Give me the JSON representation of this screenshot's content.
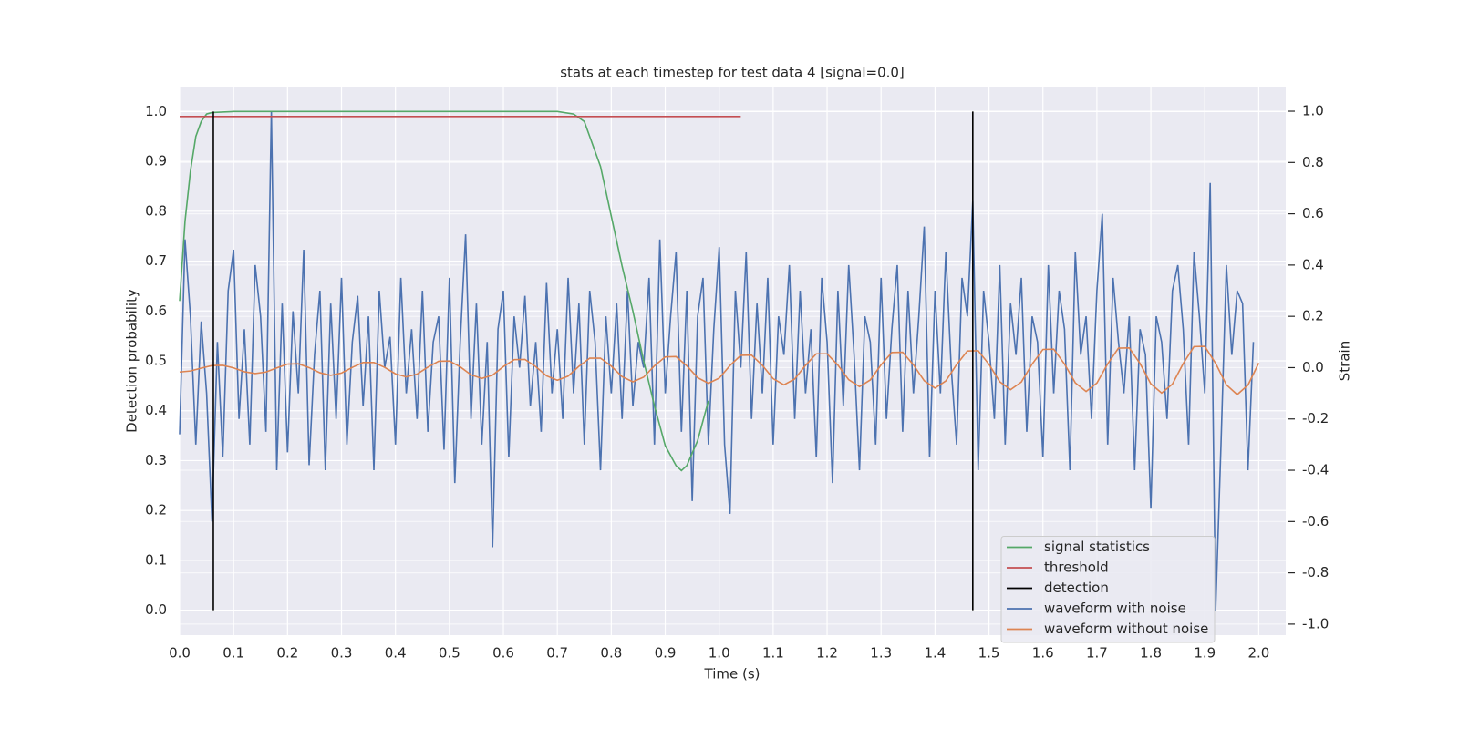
{
  "chart_data": {
    "type": "line",
    "title": "stats at each timestep for test data 4 [signal=0.0]",
    "xlabel": "Time (s)",
    "ylabel": "Detection probability",
    "y2label": "Strain",
    "xlim": [
      0,
      2.05
    ],
    "ylim": [
      -0.05,
      1.05
    ],
    "y2lim": [
      -1.043,
      1.096
    ],
    "xticks": [
      {
        "value": 0,
        "label": "0.0"
      },
      0.1,
      0.2,
      0.3,
      0.4,
      0.5,
      0.6,
      0.7,
      0.8,
      0.9,
      {
        "value": 1,
        "label": "1.0"
      },
      1.1,
      1.2,
      1.3,
      1.4,
      1.5,
      1.6,
      1.7,
      1.8,
      1.9,
      {
        "value": 2,
        "label": "2.0"
      }
    ],
    "yticks": [
      {
        "value": 0,
        "label": "0.0"
      },
      0.1,
      0.2,
      0.3,
      0.4,
      0.5,
      0.6,
      0.7,
      0.8,
      0.9,
      {
        "value": 1,
        "label": "1.0"
      }
    ],
    "y2ticks": [
      {
        "value": -1,
        "label": "-1.0"
      },
      -0.8,
      -0.6,
      -0.4,
      -0.2,
      {
        "value": 0,
        "label": "0.0"
      },
      0.2,
      0.4,
      0.6,
      0.8,
      {
        "value": 1,
        "label": "1.0"
      }
    ],
    "grid": true,
    "legend": "lower right",
    "series": [
      {
        "name": "signal statistics",
        "color": "#55a868",
        "x": [
          0,
          0.01,
          0.02,
          0.03,
          0.04,
          0.05,
          0.06,
          0.1,
          0.2,
          0.3,
          0.4,
          0.5,
          0.6,
          0.7,
          0.73,
          0.75,
          0.76,
          0.78,
          0.8,
          0.82,
          0.84,
          0.86,
          0.88,
          0.9,
          0.92,
          0.93,
          0.94,
          0.96,
          0.98
        ],
        "values": [
          0.62,
          0.78,
          0.88,
          0.95,
          0.98,
          0.995,
          0.998,
          1,
          1,
          1,
          1,
          1,
          1,
          1,
          0.995,
          0.98,
          0.95,
          0.89,
          0.79,
          0.69,
          0.6,
          0.5,
          0.41,
          0.33,
          0.29,
          0.28,
          0.29,
          0.34,
          0.42
        ]
      },
      {
        "name": "threshold",
        "color": "#c44e52",
        "x": [
          0,
          1.04
        ],
        "values": [
          0.99,
          0.99
        ]
      },
      {
        "name": "detection",
        "color": "#000000",
        "x": [
          0.0625,
          0.0625,
          null,
          1.47,
          1.47
        ],
        "values": [
          0,
          1,
          null,
          0,
          1
        ]
      },
      {
        "name": "waveform with noise",
        "color": "#4c72b0",
        "axis": "y2",
        "x": [
          0,
          0.01,
          0.02,
          0.03,
          0.04,
          0.05,
          0.06,
          0.07,
          0.08,
          0.09,
          0.1,
          0.11,
          0.12,
          0.13,
          0.14,
          0.15,
          0.16,
          0.17,
          0.18,
          0.19,
          0.2,
          0.21,
          0.22,
          0.23,
          0.24,
          0.25,
          0.26,
          0.27,
          0.28,
          0.29,
          0.3,
          0.31,
          0.32,
          0.33,
          0.34,
          0.35,
          0.36,
          0.37,
          0.38,
          0.39,
          0.4,
          0.41,
          0.42,
          0.43,
          0.44,
          0.45,
          0.46,
          0.47,
          0.48,
          0.49,
          0.5,
          0.51,
          0.52,
          0.53,
          0.54,
          0.55,
          0.56,
          0.57,
          0.58,
          0.59,
          0.6,
          0.61,
          0.62,
          0.63,
          0.64,
          0.65,
          0.66,
          0.67,
          0.68,
          0.69,
          0.7,
          0.71,
          0.72,
          0.73,
          0.74,
          0.75,
          0.76,
          0.77,
          0.78,
          0.79,
          0.8,
          0.81,
          0.82,
          0.83,
          0.84,
          0.85,
          0.86,
          0.87,
          0.88,
          0.89,
          0.9,
          0.91,
          0.92,
          0.93,
          0.94,
          0.95,
          0.96,
          0.97,
          0.98,
          0.99,
          1,
          1.01,
          1.02,
          1.03,
          1.04,
          1.05,
          1.06,
          1.07,
          1.08,
          1.09,
          1.1,
          1.11,
          1.12,
          1.13,
          1.14,
          1.15,
          1.16,
          1.17,
          1.18,
          1.19,
          1.2,
          1.21,
          1.22,
          1.23,
          1.24,
          1.25,
          1.26,
          1.27,
          1.28,
          1.29,
          1.3,
          1.31,
          1.32,
          1.33,
          1.34,
          1.35,
          1.36,
          1.37,
          1.38,
          1.39,
          1.4,
          1.41,
          1.42,
          1.43,
          1.44,
          1.45,
          1.46,
          1.47,
          1.48,
          1.49,
          1.5,
          1.51,
          1.52,
          1.53,
          1.54,
          1.55,
          1.56,
          1.57,
          1.58,
          1.59,
          1.6,
          1.61,
          1.62,
          1.63,
          1.64,
          1.65,
          1.66,
          1.67,
          1.68,
          1.69,
          1.7,
          1.71,
          1.72,
          1.73,
          1.74,
          1.75,
          1.76,
          1.77,
          1.78,
          1.79,
          1.8,
          1.81,
          1.82,
          1.83,
          1.84,
          1.85,
          1.86,
          1.87,
          1.88,
          1.89,
          1.9,
          1.91,
          1.92,
          1.93,
          1.94,
          1.95,
          1.96,
          1.97,
          1.98,
          1.99
        ],
        "values": [
          -0.26,
          0.5,
          0.2,
          -0.3,
          0.18,
          -0.1,
          -0.6,
          0.1,
          -0.35,
          0.3,
          0.46,
          -0.2,
          0.15,
          -0.3,
          0.4,
          0.2,
          -0.25,
          1.0,
          -0.4,
          0.25,
          -0.33,
          0.22,
          -0.1,
          0.46,
          -0.38,
          0.05,
          0.3,
          -0.4,
          0.25,
          -0.2,
          0.35,
          -0.3,
          0.1,
          0.28,
          -0.15,
          0.2,
          -0.4,
          0.3,
          0.0,
          0.12,
          -0.3,
          0.35,
          -0.1,
          0.15,
          -0.2,
          0.3,
          -0.25,
          0.1,
          0.2,
          -0.32,
          0.35,
          -0.45,
          0.1,
          0.52,
          -0.2,
          0.25,
          -0.3,
          0.1,
          -0.7,
          0.15,
          0.3,
          -0.35,
          0.2,
          0.0,
          0.28,
          -0.15,
          0.1,
          -0.25,
          0.33,
          -0.1,
          0.15,
          -0.2,
          0.35,
          -0.1,
          0.25,
          -0.3,
          0.3,
          0.1,
          -0.4,
          0.2,
          -0.1,
          0.25,
          -0.2,
          0.3,
          -0.15,
          0.1,
          0.0,
          0.35,
          -0.3,
          0.5,
          -0.1,
          0.2,
          0.45,
          -0.25,
          0.3,
          -0.52,
          0.2,
          0.35,
          -0.3,
          0.15,
          0.47,
          -0.3,
          -0.57,
          0.3,
          0.0,
          0.45,
          -0.2,
          0.25,
          -0.1,
          0.35,
          -0.3,
          0.2,
          0.05,
          0.4,
          -0.2,
          0.3,
          -0.1,
          0.15,
          -0.35,
          0.35,
          0.1,
          -0.45,
          0.3,
          -0.15,
          0.4,
          0.05,
          -0.4,
          0.2,
          0.1,
          -0.3,
          0.35,
          -0.2,
          0.15,
          0.4,
          -0.25,
          0.3,
          -0.1,
          0.2,
          0.55,
          -0.35,
          0.3,
          -0.1,
          0.45,
          0.0,
          -0.3,
          0.35,
          0.2,
          0.65,
          -0.4,
          0.3,
          0.1,
          -0.2,
          0.4,
          -0.3,
          0.25,
          0.05,
          0.35,
          -0.25,
          0.2,
          0.1,
          -0.35,
          0.4,
          -0.1,
          0.3,
          0.15,
          -0.4,
          0.45,
          0.05,
          0.2,
          -0.2,
          0.3,
          0.6,
          -0.3,
          0.35,
          0.1,
          -0.1,
          0.2,
          -0.4,
          0.15,
          0.05,
          -0.55,
          0.2,
          0.1,
          -0.2,
          0.3,
          0.4,
          0.15,
          -0.3,
          0.45,
          0.2,
          -0.1,
          0.72,
          -0.95,
          -0.3,
          0.4,
          0.05,
          0.3,
          0.25,
          -0.4,
          0.1
        ]
      },
      {
        "name": "waveform without noise",
        "color": "#dd8452",
        "axis": "y2",
        "x": [
          0,
          0.02,
          0.04,
          0.06,
          0.08,
          0.1,
          0.12,
          0.14,
          0.16,
          0.18,
          0.2,
          0.22,
          0.24,
          0.26,
          0.28,
          0.3,
          0.32,
          0.34,
          0.36,
          0.38,
          0.4,
          0.42,
          0.44,
          0.46,
          0.48,
          0.5,
          0.52,
          0.54,
          0.56,
          0.58,
          0.6,
          0.62,
          0.64,
          0.66,
          0.68,
          0.7,
          0.72,
          0.74,
          0.76,
          0.78,
          0.8,
          0.82,
          0.84,
          0.86,
          0.88,
          0.9,
          0.92,
          0.94,
          0.96,
          0.98,
          1,
          1.02,
          1.04,
          1.06,
          1.08,
          1.1,
          1.12,
          1.14,
          1.16,
          1.18,
          1.2,
          1.22,
          1.24,
          1.26,
          1.28,
          1.3,
          1.32,
          1.34,
          1.36,
          1.38,
          1.4,
          1.42,
          1.44,
          1.46,
          1.48,
          1.5,
          1.52,
          1.54,
          1.56,
          1.58,
          1.6,
          1.62,
          1.64,
          1.66,
          1.68,
          1.7,
          1.72,
          1.74,
          1.76,
          1.78,
          1.8,
          1.82,
          1.84,
          1.86,
          1.88,
          1.9,
          1.92,
          1.94,
          1.96,
          1.98,
          2
        ],
        "values": [
          -0.017,
          -0.013,
          -0.002,
          0.008,
          0.009,
          -0.001,
          -0.016,
          -0.023,
          -0.017,
          -0.001,
          0.014,
          0.015,
          0,
          -0.02,
          -0.03,
          -0.021,
          0.001,
          0.02,
          0.02,
          0.001,
          -0.024,
          -0.036,
          -0.025,
          0.002,
          0.025,
          0.026,
          0.003,
          -0.028,
          -0.042,
          -0.029,
          0.004,
          0.031,
          0.032,
          0.004,
          -0.032,
          -0.049,
          -0.033,
          0.005,
          0.037,
          0.037,
          0.006,
          -0.035,
          -0.055,
          -0.037,
          0.007,
          0.042,
          0.043,
          0.007,
          -0.039,
          -0.061,
          -0.041,
          0.008,
          0.048,
          0.049,
          0.009,
          -0.043,
          -0.067,
          -0.044,
          0.009,
          0.054,
          0.054,
          0.01,
          -0.047,
          -0.074,
          -0.048,
          0.011,
          0.059,
          0.06,
          0.011,
          -0.051,
          -0.08,
          -0.052,
          0.012,
          0.065,
          0.066,
          0.013,
          -0.055,
          -0.086,
          -0.056,
          0.014,
          0.071,
          0.072,
          0.014,
          -0.059,
          -0.093,
          -0.06,
          0.015,
          0.076,
          0.077,
          0.016,
          -0.063,
          -0.099,
          -0.064,
          0.016,
          0.082,
          0.083,
          0.017,
          -0.067,
          -0.105,
          -0.068,
          0.018
        ]
      }
    ]
  }
}
